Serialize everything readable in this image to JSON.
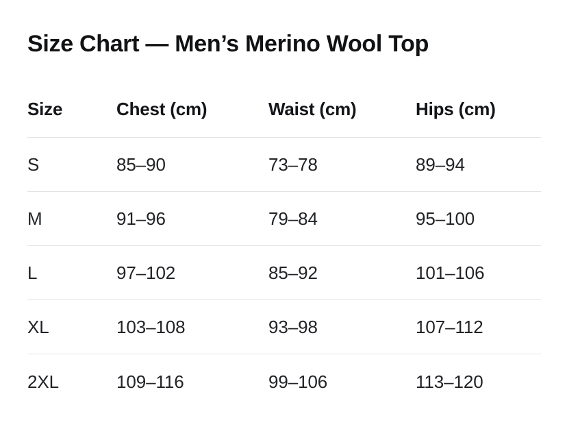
{
  "page": {
    "title": "Size Chart — Men’s Merino Wool Top"
  },
  "table": {
    "columns": [
      "Size",
      "Chest (cm)",
      "Waist (cm)",
      "Hips (cm)"
    ],
    "rows": [
      {
        "size": "S",
        "chest": "85–90",
        "waist": "73–78",
        "hips": "89–94"
      },
      {
        "size": "M",
        "chest": "91–96",
        "waist": "79–84",
        "hips": "95–100"
      },
      {
        "size": "L",
        "chest": "97–102",
        "waist": "85–92",
        "hips": "101–106"
      },
      {
        "size": "XL",
        "chest": "103–108",
        "waist": "93–98",
        "hips": "107–112"
      },
      {
        "size": "2XL",
        "chest": "109–116",
        "waist": "99–106",
        "hips": "113–120"
      }
    ]
  },
  "colors": {
    "background": "#ffffff",
    "title_text": "#111214",
    "header_text": "#141518",
    "cell_text": "#212326",
    "divider": "#e3e3e5"
  }
}
